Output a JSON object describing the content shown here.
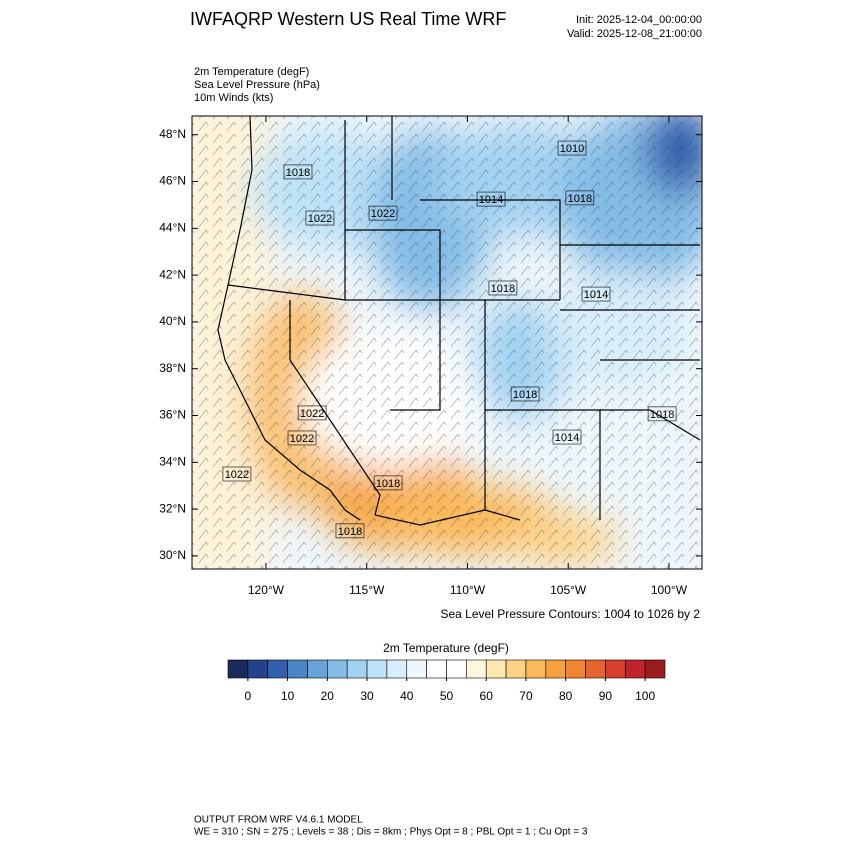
{
  "header": {
    "title": "IWFAQRP Western US Real Time WRF",
    "init": "Init: 2025-12-04_00:00:00",
    "valid": "Valid: 2025-12-08_21:00:00"
  },
  "fields": [
    "2m Temperature   (degF)",
    "Sea Level Pressure   (hPa)",
    "10m Winds   (kts)"
  ],
  "map": {
    "lonlim": [
      -123.67,
      -98.36
    ],
    "latlim": [
      29.44,
      48.8
    ],
    "lonticks": [
      {
        "value": -120,
        "label": "120°W"
      },
      {
        "value": -115,
        "label": "115°W"
      },
      {
        "value": -110,
        "label": "110°W"
      },
      {
        "value": -105,
        "label": "105°W"
      },
      {
        "value": -100,
        "label": "100°W"
      }
    ],
    "latticks": [
      {
        "value": 30,
        "label": "30°N"
      },
      {
        "value": 32,
        "label": "32°N"
      },
      {
        "value": 34,
        "label": "34°N"
      },
      {
        "value": 36,
        "label": "36°N"
      },
      {
        "value": 38,
        "label": "38°N"
      },
      {
        "value": 40,
        "label": "40°N"
      },
      {
        "value": 42,
        "label": "42°N"
      },
      {
        "value": 44,
        "label": "44°N"
      },
      {
        "value": 46,
        "label": "46°N"
      },
      {
        "value": 48,
        "label": "48°N"
      }
    ],
    "contour_labels": [
      {
        "lon": -118.41,
        "lat": 46.41,
        "value": 1018
      },
      {
        "lon": -117.32,
        "lat": 44.44,
        "value": 1022
      },
      {
        "lon": -114.19,
        "lat": 44.65,
        "value": 1022
      },
      {
        "lon": -108.83,
        "lat": 45.25,
        "value": 1014
      },
      {
        "lon": -104.42,
        "lat": 45.3,
        "value": 1018
      },
      {
        "lon": -104.81,
        "lat": 47.43,
        "value": 1010
      },
      {
        "lon": -103.62,
        "lat": 41.19,
        "value": 1014
      },
      {
        "lon": -108.24,
        "lat": 41.45,
        "value": 1018
      },
      {
        "lon": -117.71,
        "lat": 36.11,
        "value": 1022
      },
      {
        "lon": -118.21,
        "lat": 35.04,
        "value": 1022
      },
      {
        "lon": -121.44,
        "lat": 33.5,
        "value": 1022
      },
      {
        "lon": -113.94,
        "lat": 33.12,
        "value": 1018
      },
      {
        "lon": -115.83,
        "lat": 31.07,
        "value": 1018
      },
      {
        "lon": -107.14,
        "lat": 36.92,
        "value": 1018
      },
      {
        "lon": -105.06,
        "lat": 35.08,
        "value": 1014
      },
      {
        "lon": -100.34,
        "lat": 36.07,
        "value": 1018
      }
    ]
  },
  "contour_note": "Sea Level Pressure Contours: 1004 to 1026 by 2",
  "colorbar": {
    "title": "2m Temperature  (degF)",
    "lim": [
      -5,
      105
    ],
    "colors": [
      "#1b2a5c",
      "#24418b",
      "#2f5fae",
      "#4a86c6",
      "#65a3d8",
      "#84bce6",
      "#a2d2f2",
      "#bde2f7",
      "#d8eefa",
      "#eef8fc",
      "#ffffff",
      "#ffffff",
      "#fff6dd",
      "#ffe8b0",
      "#fdd285",
      "#fbb95b",
      "#f7a040",
      "#f28534",
      "#e8642f",
      "#d7402c",
      "#c0242a",
      "#9b1c1e"
    ],
    "ticks": [
      0,
      10,
      20,
      30,
      40,
      50,
      60,
      70,
      80,
      90,
      100
    ]
  },
  "footer": [
    "OUTPUT FROM WRF V4.6.1 MODEL",
    "WE = 310 ; SN = 275 ; Levels = 38 ; Dis = 8km ; Phys Opt = 8 ; PBL Opt = 1 ; Cu Opt = 3"
  ]
}
